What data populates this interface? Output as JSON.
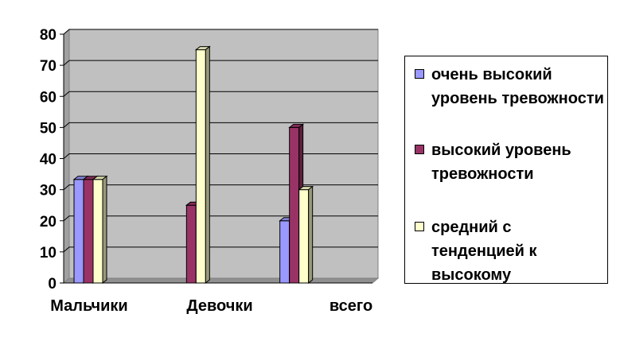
{
  "chart_data": {
    "type": "bar",
    "style": "3d-clustered-column",
    "categories": [
      "Мальчики",
      "Девочки",
      "всего"
    ],
    "series": [
      {
        "name": "очень высокий уровень тревожности",
        "values": [
          33.3,
          0,
          20
        ],
        "color": "#9999ff"
      },
      {
        "name": "высокий уровень тревожности",
        "values": [
          33.3,
          25,
          50
        ],
        "color": "#993366"
      },
      {
        "name": "средний с тенденцией к высокому",
        "values": [
          33.3,
          75,
          30
        ],
        "color": "#ffffcc"
      }
    ],
    "ylim": [
      0,
      80
    ],
    "yticks": [
      0,
      10,
      20,
      30,
      40,
      50,
      60,
      70,
      80
    ],
    "grid": true,
    "plot_background": "#c0c0c0",
    "legend_position": "right"
  }
}
